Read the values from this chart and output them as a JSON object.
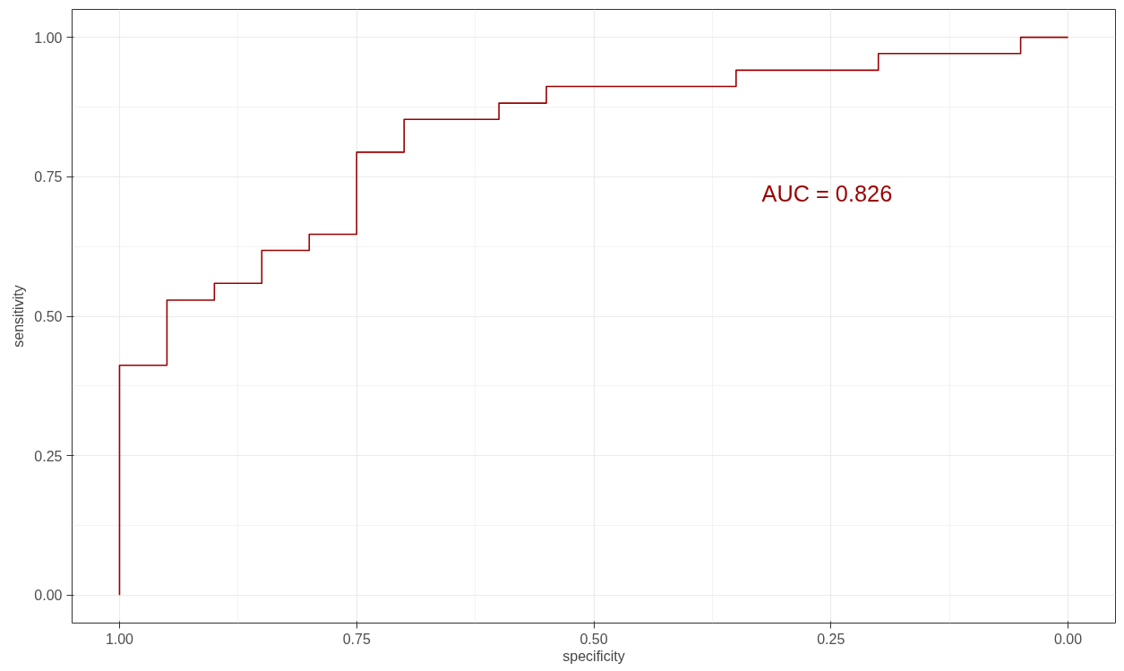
{
  "chart_data": {
    "type": "step",
    "xlabel": "specificity",
    "ylabel": "sensitivity",
    "x": [
      1.0,
      1.0,
      0.95,
      0.9,
      0.85,
      0.8,
      0.75,
      0.7,
      0.6,
      0.55,
      0.35,
      0.2,
      0.05,
      0.0
    ],
    "series": [
      {
        "color": "#990000",
        "values": [
          0.0,
          0.412,
          0.529,
          0.559,
          0.618,
          0.647,
          0.794,
          0.853,
          0.882,
          0.912,
          0.941,
          0.971,
          1.0,
          1.0
        ]
      }
    ],
    "xlim": [
      1.05,
      -0.05
    ],
    "ylim": [
      -0.05,
      1.05
    ],
    "xticks": [
      {
        "value": 1.0,
        "label": "1.00"
      },
      {
        "value": 0.75,
        "label": "0.75"
      },
      {
        "value": 0.5,
        "label": "0.50"
      },
      {
        "value": 0.25,
        "label": "0.25"
      },
      {
        "value": 0.0,
        "label": "0.00"
      }
    ],
    "yticks": [
      {
        "value": 0.0,
        "label": "0.00"
      },
      {
        "value": 0.25,
        "label": "0.25"
      },
      {
        "value": 0.5,
        "label": "0.50"
      },
      {
        "value": 0.75,
        "label": "0.75"
      },
      {
        "value": 1.0,
        "label": "1.00"
      }
    ],
    "grid": true,
    "annotations": [
      "AUC = 0.826"
    ]
  }
}
